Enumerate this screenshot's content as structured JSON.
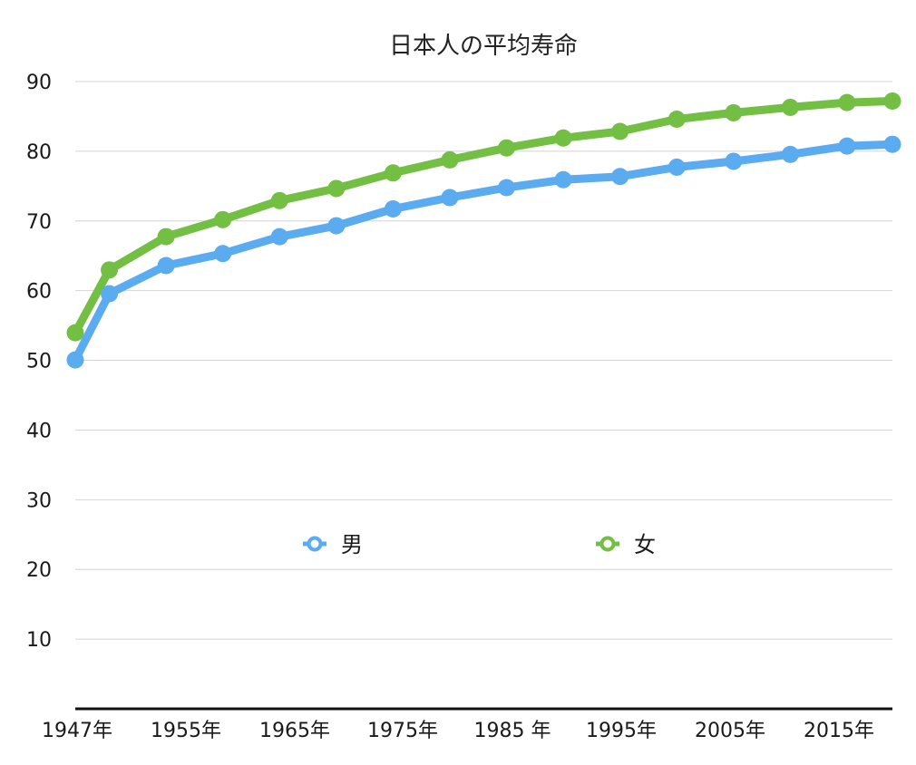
{
  "chart_data": {
    "type": "line",
    "title": "日本人の平均寿命",
    "xlabel": "",
    "ylabel": "",
    "x": [
      1947,
      1950,
      1955,
      1960,
      1965,
      1970,
      1975,
      1980,
      1985,
      1990,
      1995,
      2000,
      2005,
      2010,
      2015,
      2019
    ],
    "x_tick_labels": [
      "1947年",
      "1955年",
      "1965年",
      "1975年",
      "1985 年",
      "1995年",
      "2005年",
      "2015年"
    ],
    "ylim": [
      0,
      90
    ],
    "y_ticks": [
      10,
      20,
      30,
      40,
      50,
      60,
      70,
      80,
      90
    ],
    "grid": true,
    "legend_position": "center",
    "series": [
      {
        "name": "男",
        "color": "#5aabf0",
        "values": [
          50.06,
          59.57,
          63.6,
          65.32,
          67.74,
          69.31,
          71.73,
          73.35,
          74.78,
          75.92,
          76.38,
          77.72,
          78.56,
          79.55,
          80.75,
          81.0
        ]
      },
      {
        "name": "女",
        "color": "#72bf44",
        "values": [
          53.96,
          62.97,
          67.75,
          70.19,
          72.92,
          74.66,
          76.89,
          78.76,
          80.48,
          81.9,
          82.85,
          84.6,
          85.52,
          86.3,
          86.99,
          87.2
        ]
      }
    ]
  }
}
